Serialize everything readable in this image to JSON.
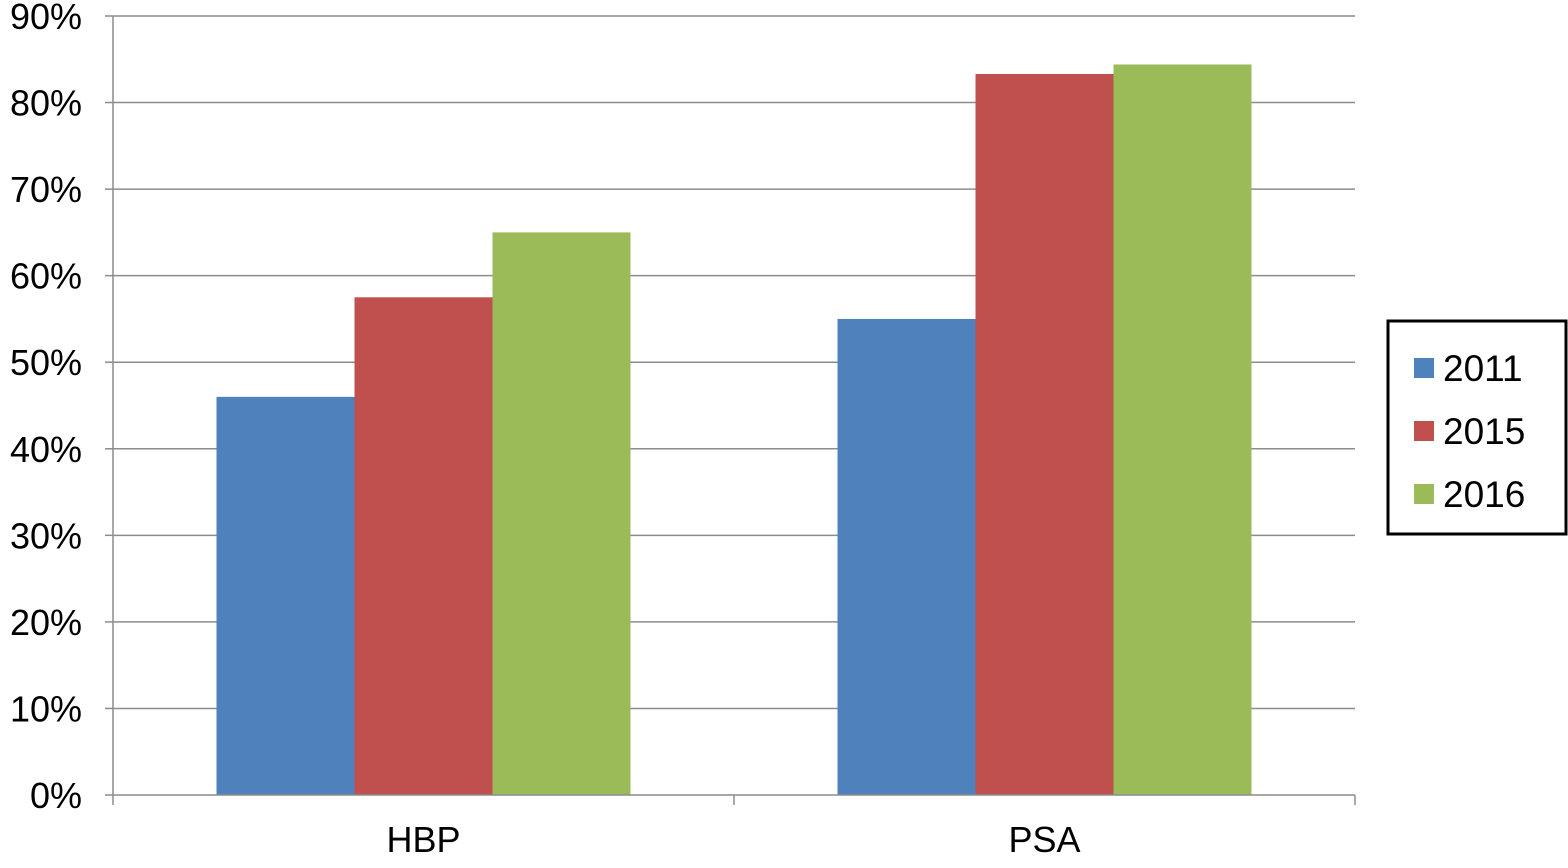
{
  "chart_data": {
    "type": "bar",
    "title": "",
    "xlabel": "",
    "ylabel": "",
    "categories": [
      "HBP",
      "PSA"
    ],
    "series": [
      {
        "name": "2011",
        "values": [
          46,
          55
        ],
        "color": "#4F81BD"
      },
      {
        "name": "2015",
        "values": [
          57.5,
          83.3
        ],
        "color": "#C0504D"
      },
      {
        "name": "2016",
        "values": [
          65,
          84.4
        ],
        "color": "#9BBB59"
      }
    ],
    "ylim": [
      0,
      90
    ],
    "yticks": [
      "0%",
      "10%",
      "20%",
      "30%",
      "40%",
      "50%",
      "60%",
      "70%",
      "80%",
      "90%"
    ],
    "grid": true,
    "legend_position": "right"
  }
}
